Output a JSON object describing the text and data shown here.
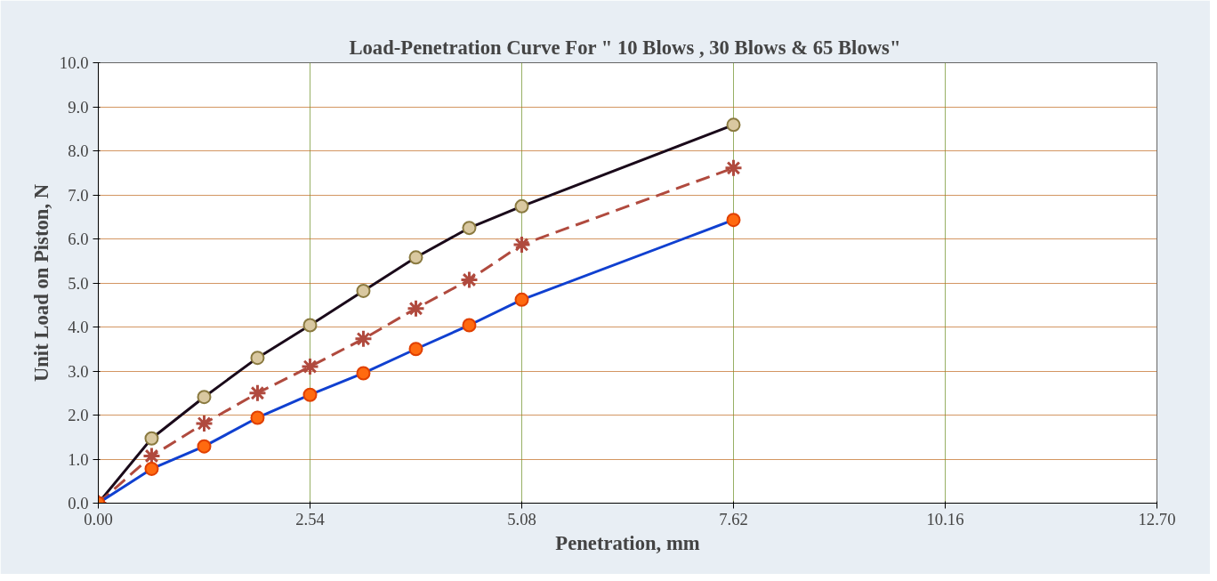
{
  "chart_data": {
    "type": "line",
    "title": "Load-Penetration  Curve For \" 10 Blows , 30 Blows & 65 Blows\"",
    "xlabel": "Penetration, mm",
    "ylabel": "Unit Load on Piston, N",
    "x": [
      0,
      0.64,
      1.27,
      1.91,
      2.54,
      3.18,
      3.81,
      4.45,
      5.08,
      7.62
    ],
    "series": [
      {
        "color": "#1a0a1a",
        "marker": "circle",
        "line_style": "solid",
        "values": [
          0,
          1.47,
          2.41,
          3.3,
          4.04,
          4.82,
          5.58,
          6.25,
          6.74,
          8.59
        ]
      },
      {
        "color": "#b04a3e",
        "marker": "cross",
        "line_style": "dashed",
        "values": [
          0,
          1.07,
          1.81,
          2.5,
          3.1,
          3.73,
          4.42,
          5.07,
          5.87,
          7.61
        ]
      },
      {
        "color": "#1040d0",
        "marker": "circle",
        "line_style": "solid",
        "values": [
          0,
          0.78,
          1.29,
          1.94,
          2.46,
          2.95,
          3.5,
          4.04,
          4.62,
          6.43
        ]
      }
    ],
    "xlim": [
      0,
      12.7
    ],
    "xticks": [
      {
        "value": 0,
        "label": "0.00"
      },
      2.54,
      5.08,
      7.62,
      10.16,
      {
        "value": 12.7,
        "label": "12.70"
      }
    ],
    "ylim": [
      0,
      10
    ],
    "yticks": [
      {
        "value": 0,
        "label": "0.0"
      },
      {
        "value": 1,
        "label": "1.0"
      },
      {
        "value": 2,
        "label": "2.0"
      },
      {
        "value": 3,
        "label": "3.0"
      },
      {
        "value": 4,
        "label": "4.0"
      },
      {
        "value": 5,
        "label": "5.0"
      },
      {
        "value": 6,
        "label": "6.0"
      },
      {
        "value": 7,
        "label": "7.0"
      },
      {
        "value": 8,
        "label": "8.0"
      },
      {
        "value": 9,
        "label": "9.0"
      },
      {
        "value": 10,
        "label": "10.0"
      }
    ],
    "grid": true
  }
}
